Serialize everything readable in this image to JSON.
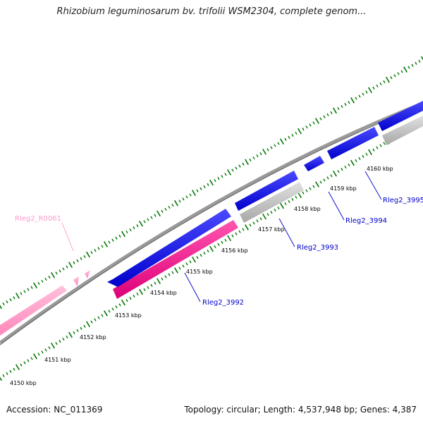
{
  "map": {
    "title": "Rhizobium leguminosarum bv. trifolii WSM2304, complete genom...",
    "accession": "Accession: NC_011369",
    "summary": "Topology: circular; Length: 4,537,948 bp; Genes: 4,387"
  },
  "ticks": [
    {
      "label": "4150 kbp"
    },
    {
      "label": "4151 kbp"
    },
    {
      "label": "4152 kbp"
    },
    {
      "label": "4153 kbp"
    },
    {
      "label": "4154 kbp"
    },
    {
      "label": "4155 kbp"
    },
    {
      "label": "4156 kbp"
    },
    {
      "label": "4157 kbp"
    },
    {
      "label": "4158 kbp"
    },
    {
      "label": "4159 kbp"
    },
    {
      "label": "4160 kbp"
    }
  ],
  "genes": [
    {
      "id": "Rleg2_R0061",
      "strand": "rna"
    },
    {
      "id": "Rleg2_3992",
      "strand": "reverse"
    },
    {
      "id": "Rleg2_3993",
      "strand": "forward"
    },
    {
      "id": "Rleg2_3994",
      "strand": "forward"
    },
    {
      "id": "Rleg2_3995",
      "strand": "forward"
    }
  ],
  "colors": {
    "forward": "#0000ee",
    "reverse": "#ff1493",
    "rna": "#ff99cc",
    "gray": "#bbbbbb",
    "backbone": "#888888",
    "tick": "#007700",
    "gene_label": "#0000cc"
  }
}
